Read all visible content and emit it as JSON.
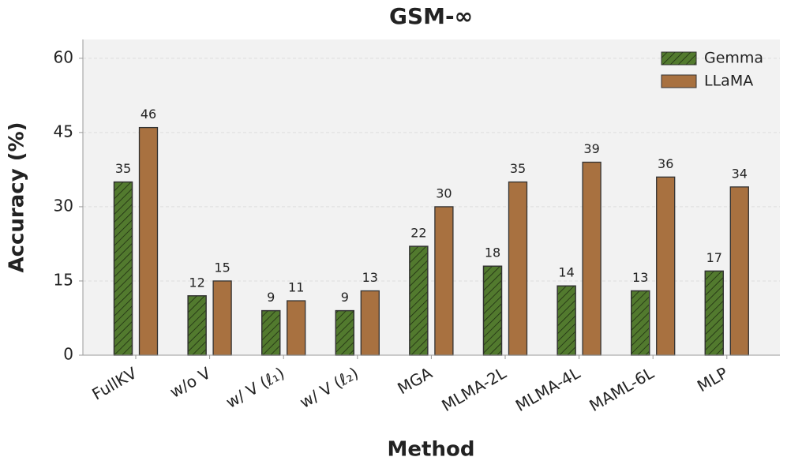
{
  "chart_data": {
    "type": "bar",
    "title": "GSM-∞",
    "x_label": "Method",
    "y_label": "Accuracy (%)",
    "categories": [
      "FullKV",
      "w/o V",
      "w/ V (ℓ₁)",
      "w/ V (ℓ₂)",
      "MGA",
      "MLMA-2L",
      "MLMA-4L",
      "MAML-6L",
      "MLP"
    ],
    "series": [
      {
        "name": "Gemma",
        "color": "#527a2e",
        "values": [
          35,
          12,
          9,
          9,
          22,
          18,
          14,
          13,
          17
        ]
      },
      {
        "name": "LLaMA",
        "color": "#a87140",
        "values": [
          46,
          15,
          11,
          13,
          30,
          35,
          39,
          36,
          34
        ]
      }
    ],
    "ylim": [
      0,
      63.8
    ],
    "yticks": [
      0,
      15,
      30,
      45,
      60
    ],
    "grid": true,
    "legend": "upper right"
  }
}
